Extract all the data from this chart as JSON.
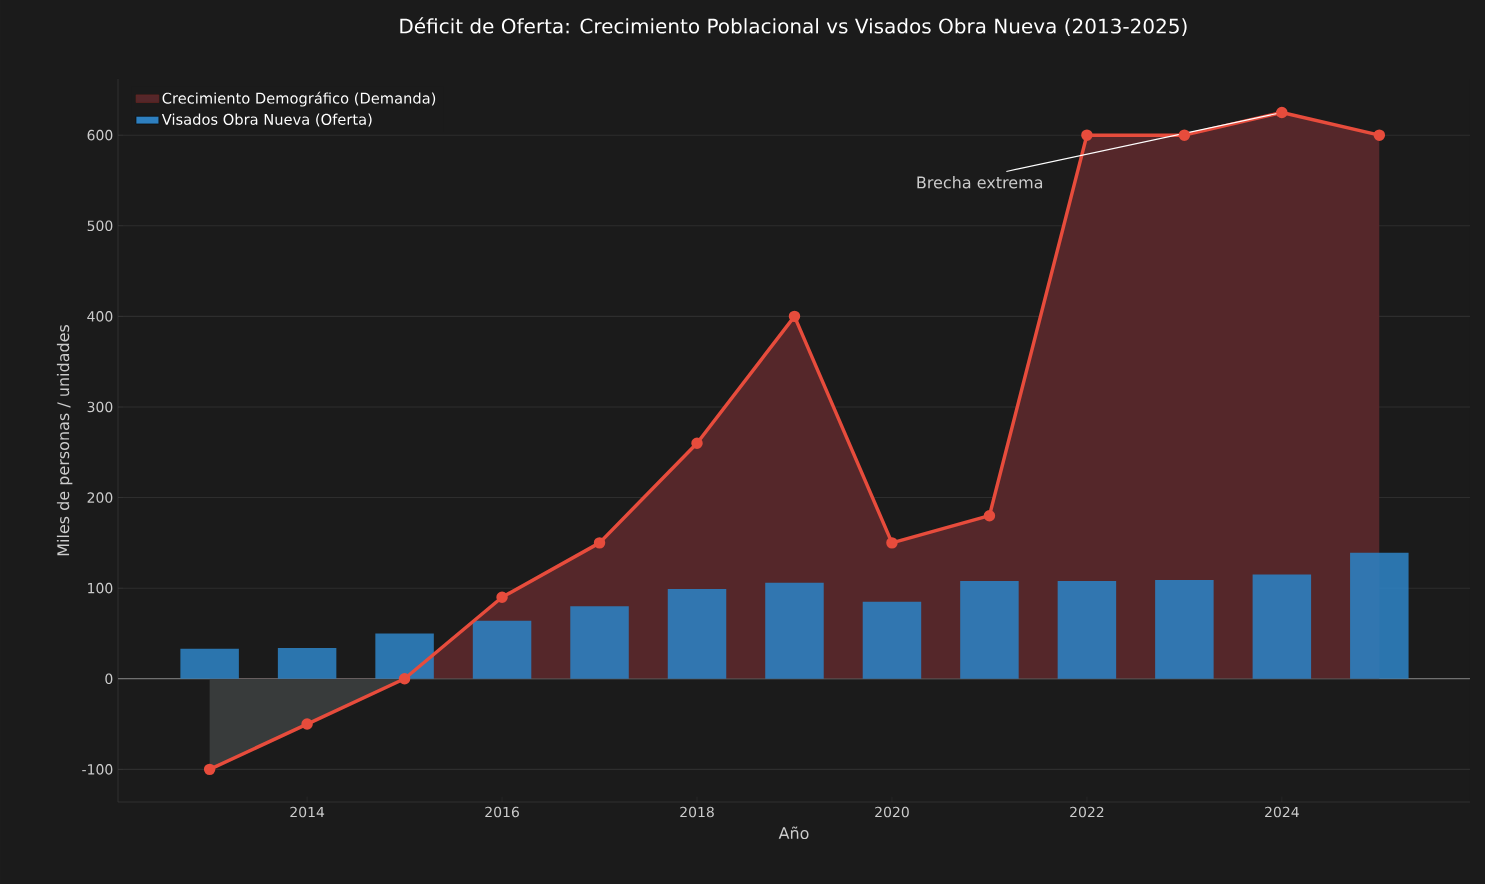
{
  "chart_data": {
    "type": "bar",
    "title": "Déficit de Oferta: Crecimiento Poblacional vs Visados Obra Nueva (2013-2025)",
    "xlabel": "Año",
    "ylabel": "Miles de personas / unidades",
    "x": [
      2013,
      2014,
      2015,
      2016,
      2017,
      2018,
      2019,
      2020,
      2021,
      2022,
      2023,
      2024,
      2025
    ],
    "series": [
      {
        "name": "Crecimiento Demográfico (Demanda)",
        "type": "area",
        "color": "#e74c3c",
        "values": [
          -100,
          -50,
          0,
          90,
          150,
          260,
          400,
          150,
          180,
          600,
          600,
          625,
          600
        ]
      },
      {
        "name": "Visados Obra Nueva (Oferta)",
        "color": "#2e7fbf",
        "values": [
          33,
          34,
          50,
          64,
          80,
          99,
          106,
          85,
          108,
          108,
          109,
          115,
          139
        ]
      }
    ],
    "xlim": [
      2012.06,
      2025.93
    ],
    "ylim": [
      -136,
      662
    ],
    "xticks": [
      2014,
      2016,
      2018,
      2020,
      2022,
      2024
    ],
    "yticks": [
      -100,
      0,
      100,
      200,
      300,
      400,
      500,
      600
    ],
    "grid": "y",
    "legend": "top left",
    "marker": "circle",
    "ref_lines": [
      {
        "axis": "y",
        "value": 0,
        "color": "#888888"
      }
    ],
    "annotations": [
      {
        "text": "Brecha extrema",
        "x": 2024,
        "y": 625
      }
    ]
  }
}
